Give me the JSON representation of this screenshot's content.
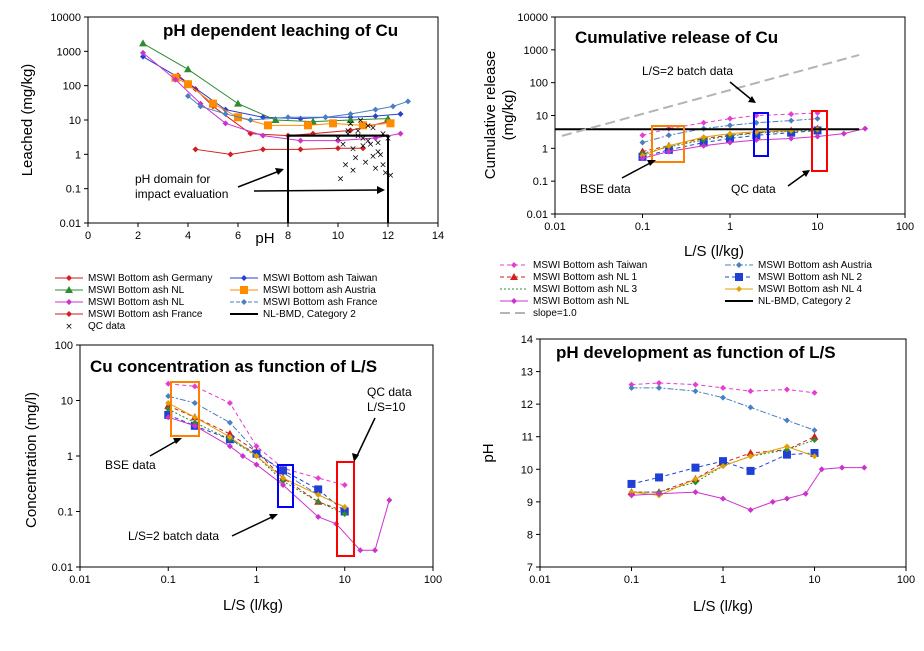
{
  "colors": {
    "bg": "#ffffff",
    "axis": "#000000",
    "series": {
      "germany": "#d21e1e",
      "taiwan": "#e63cd2",
      "nl_green": "#2e8b2e",
      "austria": "#ff8c00",
      "nl_magenta": "#cc33cc",
      "france": "#4a7fc1",
      "france_red": "#d21e1e",
      "nlbmd": "#000000",
      "qc": "#000000",
      "blue_nl2": "#1f3fd6",
      "yellow_nl4": "#e0a000",
      "slope": "#b4b4b4"
    },
    "boxes": {
      "orange": "#ff7f00",
      "blue": "#0000ff",
      "red": "#ff0000"
    }
  },
  "chart_data": [
    {
      "panel": "pH dependent leaching",
      "type": "scatter",
      "title": "pH dependent leaching of Cu",
      "xlabel": "pH",
      "ylabel": "Leached (mg/kg)",
      "xlim": [
        0,
        14
      ],
      "ylim": [
        0.01,
        10000
      ],
      "yscale": "log",
      "xticks": [
        "0",
        "2",
        "4",
        "6",
        "8",
        "10",
        "12",
        "14"
      ],
      "yticks": [
        "0.01",
        "0.1",
        "1",
        "10",
        "100",
        "1000",
        "10000"
      ],
      "series": [
        {
          "name": "MSWI Bottom ash Germany",
          "color": "#d21e1e",
          "marker": "diamond",
          "x": [
            3.6,
            4.3,
            5.0,
            6.5,
            8.0,
            9.0,
            10.5,
            12.0
          ],
          "y": [
            200,
            80,
            25,
            4,
            3.5,
            4,
            5,
            9
          ]
        },
        {
          "name": "MSWI Bottom ash Taiwan",
          "color": "#2a3fd1",
          "marker": "diamond",
          "x": [
            2.2,
            4.0,
            5.5,
            7.0,
            8.5,
            9.5,
            10.5,
            11.5,
            12.5
          ],
          "y": [
            700,
            120,
            20,
            12,
            11,
            12,
            12,
            13,
            15
          ]
        },
        {
          "name": "MSWI Bottom ash NL",
          "color": "#2e8b2e",
          "marker": "triangle",
          "x": [
            2.2,
            4.0,
            6.0,
            7.5,
            9.0,
            10.5,
            12.0
          ],
          "y": [
            1700,
            300,
            30,
            10,
            9,
            10,
            11
          ]
        },
        {
          "name": "MSWI bottom ash Austria",
          "color": "#ff8c00",
          "marker": "square",
          "x": [
            3.5,
            4.0,
            5.0,
            6.0,
            7.2,
            8.8,
            9.8,
            11.0,
            12.1
          ],
          "y": [
            170,
            110,
            30,
            12,
            7,
            7,
            8,
            7,
            8
          ]
        },
        {
          "name": "MSWI Bottom ash NL",
          "color": "#cc33cc",
          "marker": "diamond",
          "x": [
            2.2,
            3.5,
            4.5,
            5.5,
            7.0,
            8.5,
            10.0,
            11.5,
            12.5
          ],
          "y": [
            900,
            150,
            30,
            8,
            3.5,
            2.5,
            2.5,
            3,
            4
          ]
        },
        {
          "name": "MSWI Bottom ash France",
          "color": "#4a7fc1",
          "marker": "diamond",
          "x": [
            4.0,
            4.5,
            5.5,
            6.5,
            8.0,
            9.5,
            10.5,
            11.5,
            12.2,
            12.8
          ],
          "y": [
            50,
            25,
            15,
            10,
            12,
            12,
            15,
            20,
            25,
            35
          ]
        },
        {
          "name": "MSWI Bottom ash France",
          "color": "#d21e1e",
          "marker": "diamond",
          "x": [
            4.3,
            5.7,
            7.0,
            8.5,
            10.0,
            11.0
          ],
          "y": [
            1.4,
            1.0,
            1.4,
            1.4,
            1.5,
            1.5
          ]
        },
        {
          "name": "QC data",
          "color": "#000000",
          "marker": "x",
          "x": [
            10.0,
            10.2,
            10.4,
            10.6,
            10.8,
            11.0,
            11.2,
            11.4,
            11.6,
            11.8,
            12.0,
            10.3,
            10.7,
            11.1,
            11.5,
            11.9,
            10.5,
            10.9,
            11.3,
            11.7,
            10.1,
            10.6,
            11.0,
            11.4,
            11.8,
            12.1,
            10.4,
            10.8,
            11.2,
            11.6
          ],
          "y": [
            3,
            2,
            4,
            1.5,
            5,
            3,
            2.5,
            6,
            1.2,
            4,
            3,
            0.5,
            0.8,
            0.6,
            0.4,
            0.3,
            8,
            10,
            2,
            1,
            0.2,
            0.35,
            1.8,
            0.9,
            0.5,
            0.25,
            5,
            3.5,
            7,
            2.2
          ]
        },
        {
          "name": "NL-BMD, Category 2",
          "color": "#000000",
          "marker": "none",
          "x": [
            8,
            12
          ],
          "y": [
            3.5,
            3.5
          ]
        }
      ],
      "annotations": [
        "pH domain for",
        "impact evaluation"
      ],
      "legend": [
        [
          "MSWI Bottom ash Germany",
          "MSWI Bottom ash Taiwan"
        ],
        [
          "MSWI Bottom ash NL",
          "MSWI bottom ash Austria"
        ],
        [
          "MSWI Bottom ash NL",
          "MSWI Bottom ash France"
        ],
        [
          "MSWI Bottom ash France",
          "NL-BMD, Category 2"
        ],
        [
          "QC data",
          ""
        ]
      ]
    },
    {
      "panel": "Cumulative release",
      "type": "line",
      "title": "Cumulative release of Cu",
      "xlabel": "L/S (l/kg)",
      "ylabel": "Cumulative release (mg/kg)",
      "xlim": [
        0.01,
        100
      ],
      "xscale": "log",
      "ylim": [
        0.01,
        10000
      ],
      "yscale": "log",
      "xticks": [
        "0.01",
        "0.1",
        "1",
        "10",
        "100"
      ],
      "yticks": [
        "0.01",
        "0.1",
        "1",
        "10",
        "100",
        "1000",
        "10000"
      ],
      "series": [
        {
          "name": "MSWI Bottom ash Taiwan",
          "color": "#e63cd2",
          "dash": "dashed",
          "x": [
            0.1,
            0.2,
            0.5,
            1,
            2,
            5,
            10
          ],
          "y": [
            2.5,
            4,
            6,
            8,
            10,
            11,
            12
          ]
        },
        {
          "name": "MSWI Bottom ash Austria",
          "color": "#4a7fc1",
          "dash": "dash-dot",
          "x": [
            0.1,
            0.2,
            0.5,
            1,
            2,
            5,
            10
          ],
          "y": [
            1.5,
            2.5,
            4,
            5,
            6,
            7,
            8
          ]
        },
        {
          "name": "MSWI Bottom ash NL 1",
          "color": "#d21e1e",
          "dash": "dashed",
          "x": [
            0.1,
            0.2,
            0.5,
            1,
            2,
            5,
            10
          ],
          "y": [
            0.8,
            1.2,
            2,
            2.5,
            3,
            3.5,
            4
          ]
        },
        {
          "name": "MSWI Bottom ash NL 2",
          "color": "#1f3fd6",
          "dash": "dashed",
          "x": [
            0.1,
            0.2,
            0.5,
            1,
            2,
            5,
            10
          ],
          "y": [
            0.55,
            0.9,
            1.5,
            2.0,
            2.5,
            3.0,
            3.5
          ]
        },
        {
          "name": "MSWI Bottom ash NL 3",
          "color": "#2e8b2e",
          "dash": "dotted",
          "x": [
            0.1,
            0.2,
            0.5,
            1,
            2,
            5,
            10
          ],
          "y": [
            0.7,
            1.1,
            1.8,
            2.4,
            2.9,
            3.3,
            3.6
          ]
        },
        {
          "name": "MSWI Bottom ash NL 4",
          "color": "#e0a000",
          "dash": "solid",
          "x": [
            0.1,
            0.2,
            0.5,
            1,
            2,
            5,
            10
          ],
          "y": [
            0.6,
            1.2,
            2.2,
            2.8,
            3.2,
            3.5,
            3.8
          ]
        },
        {
          "name": "MSWI Bottom ash NL",
          "color": "#cc33cc",
          "dash": "solid",
          "x": [
            0.1,
            0.2,
            0.5,
            1,
            2,
            5,
            10,
            20,
            35
          ],
          "y": [
            0.5,
            0.8,
            1.2,
            1.5,
            1.8,
            2.0,
            2.3,
            2.8,
            4
          ]
        },
        {
          "name": "NL-BMD, Category 2",
          "color": "#000000",
          "dash": "solid",
          "x": [
            0.01,
            30
          ],
          "y": [
            3.8,
            3.8
          ]
        },
        {
          "name": "slope=1.0",
          "color": "#b4b4b4",
          "dash": "long-dash",
          "x": [
            0.012,
            30
          ],
          "y": [
            2.4,
            700
          ]
        }
      ],
      "annotations": [
        "L/S=2 batch data",
        "BSE data",
        "QC data"
      ],
      "legend": [
        [
          "MSWI Bottom ash Taiwan",
          "MSWI Bottom ash Austria"
        ],
        [
          "MSWI Bottom ash NL 1",
          "MSWI Bottom ash NL 2"
        ],
        [
          "MSWI Bottom ash NL 3",
          "MSWI Bottom ash NL 4"
        ],
        [
          "MSWI Bottom ash NL",
          "NL-BMD, Category 2"
        ],
        [
          "slope=1.0",
          ""
        ]
      ]
    },
    {
      "panel": "Cu concentration",
      "type": "line",
      "title": "Cu concentration as function of L/S",
      "xlabel": "L/S (l/kg)",
      "ylabel": "Concentration (mg/l)",
      "xlim": [
        0.01,
        100
      ],
      "xscale": "log",
      "ylim": [
        0.01,
        100
      ],
      "yscale": "log",
      "xticks": [
        "0.01",
        "0.1",
        "1",
        "10",
        "100"
      ],
      "yticks": [
        "0.01",
        "0.1",
        "1",
        "10",
        "100"
      ],
      "series": [
        {
          "name": "MSWI Bottom ash Taiwan",
          "color": "#e63cd2",
          "dash": "dashed",
          "x": [
            0.1,
            0.2,
            0.5,
            1,
            2,
            5,
            10
          ],
          "y": [
            20,
            18,
            9,
            1.5,
            0.6,
            0.4,
            0.3
          ]
        },
        {
          "name": "MSWI Bottom ash Austria",
          "color": "#4a7fc1",
          "dash": "dash-dot",
          "x": [
            0.1,
            0.2,
            0.5,
            1,
            2,
            5,
            10
          ],
          "y": [
            12,
            9,
            4,
            1.2,
            0.5,
            0.2,
            0.12
          ]
        },
        {
          "name": "MSWI Bottom ash NL 1",
          "color": "#d21e1e",
          "dash": "dashed",
          "x": [
            0.1,
            0.2,
            0.5,
            1,
            2,
            5,
            10
          ],
          "y": [
            8,
            5,
            2.5,
            1.2,
            0.4,
            0.15,
            0.1
          ]
        },
        {
          "name": "MSWI Bottom ash NL 2",
          "color": "#1f3fd6",
          "dash": "dashed",
          "x": [
            0.1,
            0.2,
            0.5,
            1,
            2,
            5,
            10
          ],
          "y": [
            5.5,
            3.5,
            2.0,
            1.1,
            0.55,
            0.25,
            0.1
          ]
        },
        {
          "name": "MSWI Bottom ash NL 3",
          "color": "#2e8b2e",
          "dash": "dotted",
          "x": [
            0.1,
            0.2,
            0.5,
            1,
            2,
            5,
            10
          ],
          "y": [
            7,
            4,
            2,
            1,
            0.35,
            0.15,
            0.09
          ]
        },
        {
          "name": "MSWI Bottom ash NL 4",
          "color": "#e0a000",
          "dash": "solid",
          "x": [
            0.1,
            0.2,
            0.5,
            1,
            2,
            5,
            10
          ],
          "y": [
            9,
            5,
            2.2,
            1.0,
            0.4,
            0.2,
            0.12
          ]
        },
        {
          "name": "MSWI Bottom ash NL",
          "color": "#cc33cc",
          "dash": "solid",
          "x": [
            0.1,
            0.2,
            0.5,
            0.7,
            1,
            2,
            5,
            8,
            15,
            22,
            32
          ],
          "y": [
            5,
            3.5,
            1.5,
            1.0,
            0.7,
            0.3,
            0.08,
            0.06,
            0.02,
            0.02,
            0.16
          ]
        }
      ],
      "annotations": [
        "BSE data",
        "QC data",
        "L/S=10",
        "L/S=2 batch data"
      ]
    },
    {
      "panel": "pH development",
      "type": "line",
      "title": "pH development as function of L/S",
      "xlabel": "L/S (l/kg)",
      "ylabel": "pH",
      "xlim": [
        0.01,
        100
      ],
      "xscale": "log",
      "ylim": [
        7,
        14
      ],
      "xticks": [
        "0.01",
        "0.1",
        "1",
        "10",
        "100"
      ],
      "yticks": [
        "7",
        "8",
        "9",
        "10",
        "11",
        "12",
        "13",
        "14"
      ],
      "series": [
        {
          "name": "MSWI Bottom ash Taiwan",
          "color": "#e63cd2",
          "dash": "dashed",
          "x": [
            0.1,
            0.2,
            0.5,
            1,
            2,
            5,
            10
          ],
          "y": [
            12.6,
            12.65,
            12.6,
            12.5,
            12.4,
            12.45,
            12.35
          ]
        },
        {
          "name": "MSWI Bottom ash Austria",
          "color": "#4a7fc1",
          "dash": "dash-dot",
          "x": [
            0.1,
            0.2,
            0.5,
            1,
            2,
            5,
            10
          ],
          "y": [
            12.5,
            12.5,
            12.4,
            12.2,
            11.9,
            11.5,
            11.2
          ]
        },
        {
          "name": "MSWI Bottom ash NL 1",
          "color": "#d21e1e",
          "dash": "dashed",
          "x": [
            0.1,
            0.2,
            0.5,
            1,
            2,
            5,
            10
          ],
          "y": [
            9.3,
            9.3,
            9.7,
            10.2,
            10.5,
            10.6,
            11.0
          ]
        },
        {
          "name": "MSWI Bottom ash NL 2",
          "color": "#1f3fd6",
          "dash": "dashed",
          "x": [
            0.1,
            0.2,
            0.5,
            1,
            2,
            5,
            10
          ],
          "y": [
            9.55,
            9.75,
            10.05,
            10.25,
            9.95,
            10.45,
            10.5
          ]
        },
        {
          "name": "MSWI Bottom ash NL 3",
          "color": "#2e8b2e",
          "dash": "dotted",
          "x": [
            0.1,
            0.2,
            0.5,
            1,
            2,
            5,
            10
          ],
          "y": [
            9.3,
            9.3,
            9.6,
            10.1,
            10.4,
            10.6,
            10.9
          ]
        },
        {
          "name": "MSWI Bottom ash NL 4",
          "color": "#e0a000",
          "dash": "solid",
          "x": [
            0.1,
            0.2,
            0.5,
            1,
            2,
            5,
            10
          ],
          "y": [
            9.3,
            9.2,
            9.7,
            10.1,
            10.4,
            10.7,
            10.4
          ]
        },
        {
          "name": "MSWI Bottom ash NL",
          "color": "#cc33cc",
          "dash": "solid",
          "x": [
            0.1,
            0.2,
            0.5,
            1,
            2,
            3.5,
            5,
            8,
            12,
            20,
            35
          ],
          "y": [
            9.2,
            9.25,
            9.3,
            9.1,
            8.75,
            9.0,
            9.1,
            9.25,
            10.0,
            10.05,
            10.05
          ]
        }
      ]
    }
  ]
}
